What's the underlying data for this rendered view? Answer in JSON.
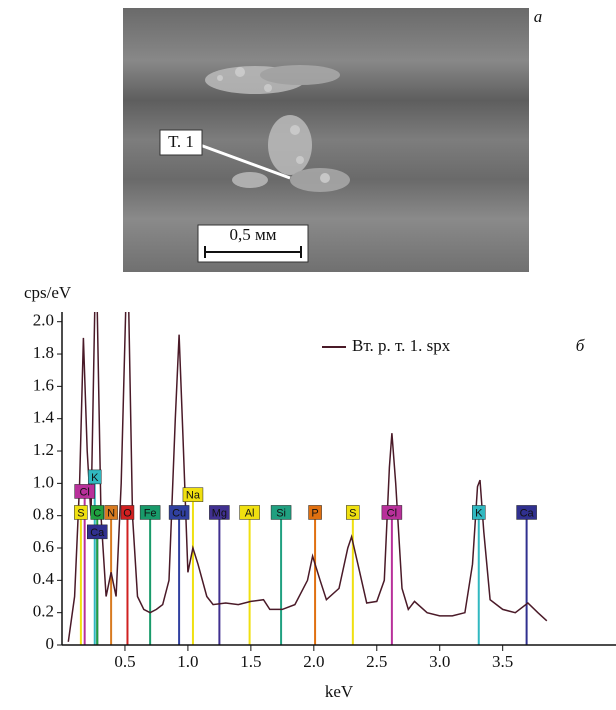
{
  "image": {
    "panel_label": "а",
    "marker": "Т. 1",
    "scale_bar": "0,5 мм"
  },
  "chart_data": {
    "type": "line",
    "panel_label": "б",
    "y_label": "cps/eV",
    "x_label": "keV",
    "xlim": [
      0,
      4.4
    ],
    "ylim": [
      0,
      2.06
    ],
    "xticks": [
      0.5,
      {
        "value": 1.0,
        "label": "1.0"
      },
      1.5,
      {
        "value": 2.0,
        "label": "2.0"
      },
      2.5,
      {
        "value": 3.0,
        "label": "3.0"
      },
      3.5
    ],
    "yticks": [
      0,
      0.2,
      0.4,
      0.6,
      0.8,
      {
        "value": 1.0,
        "label": "1.0"
      },
      1.2,
      1.4,
      1.6,
      1.8,
      {
        "value": 2.0,
        "label": "2.0"
      }
    ],
    "series": [
      {
        "name": "Вт. р. т. 1. spx",
        "color": "#4a1a28",
        "x": [
          0.05,
          0.1,
          0.14,
          0.17,
          0.2,
          0.23,
          0.27,
          0.31,
          0.35,
          0.39,
          0.43,
          0.47,
          0.52,
          0.56,
          0.6,
          0.65,
          0.7,
          0.75,
          0.8,
          0.85,
          0.9,
          0.93,
          0.96,
          1.0,
          1.04,
          1.08,
          1.15,
          1.2,
          1.3,
          1.4,
          1.5,
          1.6,
          1.65,
          1.75,
          1.85,
          1.95,
          1.99,
          2.05,
          2.1,
          2.2,
          2.27,
          2.3,
          2.35,
          2.42,
          2.5,
          2.56,
          2.6,
          2.62,
          2.65,
          2.7,
          2.75,
          2.8,
          2.9,
          3.0,
          3.1,
          3.2,
          3.26,
          3.3,
          3.32,
          3.35,
          3.4,
          3.5,
          3.6,
          3.7,
          3.78,
          3.85
        ],
        "values": [
          0.02,
          0.3,
          1.0,
          1.9,
          1.2,
          0.8,
          2.5,
          0.8,
          0.3,
          0.45,
          0.3,
          1.0,
          2.5,
          0.8,
          0.3,
          0.22,
          0.2,
          0.22,
          0.25,
          0.4,
          1.4,
          1.92,
          1.3,
          0.45,
          0.6,
          0.5,
          0.3,
          0.25,
          0.26,
          0.25,
          0.27,
          0.28,
          0.22,
          0.22,
          0.25,
          0.4,
          0.55,
          0.4,
          0.28,
          0.35,
          0.6,
          0.67,
          0.5,
          0.26,
          0.27,
          0.4,
          1.1,
          1.31,
          1.0,
          0.35,
          0.22,
          0.27,
          0.2,
          0.18,
          0.18,
          0.2,
          0.5,
          0.98,
          1.02,
          0.7,
          0.28,
          0.22,
          0.2,
          0.26,
          0.2,
          0.15
        ]
      }
    ],
    "elements": [
      {
        "label": "S",
        "x": 0.15,
        "height": 0.82,
        "color": "#f0e010"
      },
      {
        "label": "Cl",
        "x": 0.18,
        "height": 0.95,
        "color": "#b8309a"
      },
      {
        "label": "K",
        "x": 0.26,
        "height": 1.04,
        "color": "#30b8c0"
      },
      {
        "label": "Ca",
        "x": 0.28,
        "height": 0.7,
        "color": "#30308f"
      },
      {
        "label": "C",
        "x": 0.28,
        "height": 0.82,
        "color": "#20a040"
      },
      {
        "label": "N",
        "x": 0.39,
        "height": 0.82,
        "color": "#d87a20"
      },
      {
        "label": "O",
        "x": 0.52,
        "height": 0.82,
        "color": "#d02020"
      },
      {
        "label": "Fe",
        "x": 0.7,
        "height": 0.82,
        "color": "#189a6a"
      },
      {
        "label": "Cu",
        "x": 0.93,
        "height": 0.82,
        "color": "#3040a0"
      },
      {
        "label": "Na",
        "x": 1.04,
        "height": 0.93,
        "color": "#f0e010"
      },
      {
        "label": "Mg",
        "x": 1.25,
        "height": 0.82,
        "color": "#403090"
      },
      {
        "label": "Al",
        "x": 1.49,
        "height": 0.82,
        "color": "#f0e010"
      },
      {
        "label": "Si",
        "x": 1.74,
        "height": 0.82,
        "color": "#20a080"
      },
      {
        "label": "P",
        "x": 2.01,
        "height": 0.82,
        "color": "#e07010"
      },
      {
        "label": "S",
        "x": 2.31,
        "height": 0.82,
        "color": "#f0e010"
      },
      {
        "label": "Cl",
        "x": 2.62,
        "height": 0.82,
        "color": "#b8309a"
      },
      {
        "label": "K",
        "x": 3.31,
        "height": 0.82,
        "color": "#30b8c0"
      },
      {
        "label": "Ca",
        "x": 3.69,
        "height": 0.82,
        "color": "#30308f"
      }
    ]
  }
}
